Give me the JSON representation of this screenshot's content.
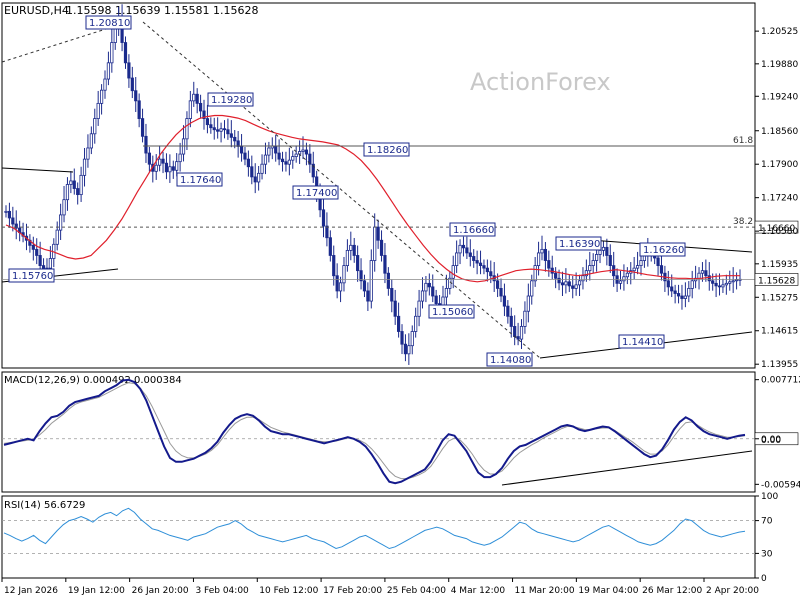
{
  "chart_data": [
    {
      "type": "candlestick",
      "title": "EURUSD,H4",
      "ohlc": "1.15598 1.15639 1.15581 1.15628",
      "watermark": "ActionForex",
      "ylim": [
        1.1388,
        1.2108
      ],
      "y_ticks": [
        "1.20525",
        "1.19880",
        "1.19240",
        "1.18560",
        "1.17900",
        "1.17240",
        "1.16580",
        "1.15935",
        "1.15275",
        "1.14615",
        "1.13955"
      ],
      "x_ticks": [
        "12 Jan 2026",
        "19 Jan 12:00",
        "26 Jan 20:00",
        "3 Feb 04:00",
        "10 Feb 12:00",
        "17 Feb 20:00",
        "25 Feb 04:00",
        "4 Mar 12:00",
        "11 Mar 20:00",
        "19 Mar 04:00",
        "26 Mar 12:00",
        "2 Apr 20:00"
      ],
      "current_price": "1.15628",
      "fib_levels": [
        {
          "label": "61.8",
          "value": 1.1826
        },
        {
          "label": "38.2",
          "value": 1.1666,
          "price_label": "1.16660"
        }
      ],
      "swing_labels": [
        "1.20810",
        "1.19280",
        "1.18260",
        "1.17640",
        "1.17400",
        "1.16660",
        "1.16390",
        "1.16260",
        "1.15760",
        "1.15060",
        "1.14410",
        "1.14080"
      ],
      "close_series": [
        1.1697,
        1.1684,
        1.1672,
        1.1664,
        1.1655,
        1.1648,
        1.164,
        1.163,
        1.1622,
        1.161,
        1.159,
        1.1578,
        1.1585,
        1.1604,
        1.1632,
        1.166,
        1.169,
        1.172,
        1.175,
        1.1757,
        1.1742,
        1.173,
        1.1768,
        1.18,
        1.1822,
        1.185,
        1.188,
        1.191,
        1.1936,
        1.1958,
        1.199,
        1.203,
        1.2065,
        1.2081,
        1.203,
        1.199,
        1.196,
        1.1935,
        1.1915,
        1.188,
        1.1845,
        1.1812,
        1.179,
        1.1776,
        1.1788,
        1.18,
        1.1792,
        1.1775,
        1.1785,
        1.1778,
        1.1795,
        1.181,
        1.184,
        1.188,
        1.1915,
        1.1928,
        1.191,
        1.1895,
        1.188,
        1.1868,
        1.1862,
        1.1858,
        1.1855,
        1.186,
        1.1858,
        1.185,
        1.1843,
        1.1836,
        1.1825,
        1.1812,
        1.18,
        1.1785,
        1.1765,
        1.1755,
        1.1772,
        1.179,
        1.1808,
        1.1822,
        1.1826,
        1.1812,
        1.18,
        1.1795,
        1.179,
        1.1798,
        1.1805,
        1.181,
        1.1815,
        1.1818,
        1.181,
        1.179,
        1.1765,
        1.1735,
        1.17,
        1.1668,
        1.1645,
        1.161,
        1.157,
        1.154,
        1.1556,
        1.159,
        1.162,
        1.163,
        1.161,
        1.158,
        1.156,
        1.154,
        1.152,
        1.16,
        1.1666,
        1.164,
        1.161,
        1.1575,
        1.1545,
        1.152,
        1.149,
        1.146,
        1.1435,
        1.1416,
        1.1432,
        1.146,
        1.149,
        1.152,
        1.154,
        1.1555,
        1.1548,
        1.153,
        1.1515,
        1.151,
        1.1528,
        1.1545,
        1.1565,
        1.159,
        1.1615,
        1.163,
        1.1625,
        1.1615,
        1.1608,
        1.16,
        1.1595,
        1.159,
        1.1585,
        1.1578,
        1.157,
        1.156,
        1.1545,
        1.153,
        1.151,
        1.149,
        1.147,
        1.145,
        1.1445,
        1.147,
        1.15,
        1.153,
        1.156,
        1.159,
        1.1615,
        1.1622,
        1.16,
        1.1585,
        1.1575,
        1.1565,
        1.1556,
        1.1552,
        1.1558,
        1.155,
        1.1545,
        1.1552,
        1.156,
        1.157,
        1.158,
        1.159,
        1.16,
        1.1612,
        1.162,
        1.1626,
        1.161,
        1.159,
        1.157,
        1.1555,
        1.156,
        1.1568,
        1.1575,
        1.158,
        1.1585,
        1.159,
        1.16,
        1.161,
        1.162,
        1.1615,
        1.1605,
        1.159,
        1.1575,
        1.156,
        1.1548,
        1.154,
        1.1535,
        1.153,
        1.1525,
        1.153,
        1.1545,
        1.156,
        1.1565,
        1.1575,
        1.158,
        1.157,
        1.156,
        1.1555,
        1.155,
        1.1548,
        1.1552,
        1.1555,
        1.1558,
        1.156,
        1.1562,
        1.1563
      ],
      "ma_series": [
        1.167,
        1.1664,
        1.1652,
        1.164,
        1.1628,
        1.1622,
        1.1618,
        1.1612,
        1.1606,
        1.1603,
        1.1605,
        1.161,
        1.1625,
        1.164,
        1.166,
        1.1682,
        1.1708,
        1.1735,
        1.176,
        1.1785,
        1.181,
        1.183,
        1.1848,
        1.1862,
        1.1872,
        1.188,
        1.1884,
        1.1886,
        1.1886,
        1.1884,
        1.1881,
        1.1876,
        1.1869,
        1.1862,
        1.1856,
        1.1851,
        1.1847,
        1.1843,
        1.184,
        1.1838,
        1.1836,
        1.1834,
        1.1831,
        1.1828,
        1.182,
        1.181,
        1.1797,
        1.178,
        1.176,
        1.1738,
        1.1715,
        1.1692,
        1.167,
        1.165,
        1.163,
        1.1612,
        1.1596,
        1.1583,
        1.1572,
        1.1564,
        1.156,
        1.1558,
        1.156,
        1.1565,
        1.157,
        1.1575,
        1.158,
        1.1582,
        1.1583,
        1.1582,
        1.158,
        1.1578,
        1.1575,
        1.1572,
        1.157,
        1.1572,
        1.1575,
        1.1578,
        1.158,
        1.1582,
        1.158,
        1.1578,
        1.1575,
        1.1572,
        1.157,
        1.1568,
        1.1566,
        1.1565,
        1.1565,
        1.1564,
        1.1565,
        1.1567,
        1.1569,
        1.157,
        1.157,
        1.157
      ],
      "trendlines": "support and resistance lines, dashed channel lines",
      "panes": [
        {
          "name": "MACD(12,26,9) 0.000492 0.000384",
          "y_ticks": [
            "0.007712",
            "0.00",
            "-0.005944"
          ],
          "current_value": "0.00",
          "macd_series": [
            -0.0008,
            -0.0006,
            -0.0004,
            -0.0002,
            0.0,
            -0.0002,
            0.001,
            0.002,
            0.0028,
            0.003,
            0.0035,
            0.0043,
            0.0048,
            0.005,
            0.0052,
            0.0054,
            0.0056,
            0.0062,
            0.0066,
            0.007,
            0.0076,
            0.0077,
            0.0074,
            0.0065,
            0.005,
            0.003,
            0.001,
            -0.001,
            -0.0025,
            -0.003,
            -0.003,
            -0.0028,
            -0.0026,
            -0.0022,
            -0.0018,
            -0.0012,
            -0.0004,
            0.0008,
            0.0018,
            0.0026,
            0.003,
            0.0032,
            0.003,
            0.0024,
            0.0016,
            0.001,
            0.0008,
            0.0006,
            0.0006,
            0.0004,
            0.0002,
            0.0,
            -0.0002,
            -0.0004,
            -0.0006,
            -0.0004,
            -0.0002,
            0.0,
            0.0002,
            0.0,
            -0.0004,
            -0.001,
            -0.002,
            -0.0032,
            -0.0045,
            -0.0056,
            -0.0058,
            -0.0056,
            -0.0052,
            -0.0048,
            -0.0044,
            -0.004,
            -0.003,
            -0.0016,
            -0.0002,
            0.0006,
            0.0004,
            -0.0006,
            -0.0016,
            -0.003,
            -0.0044,
            -0.005,
            -0.005,
            -0.0046,
            -0.0038,
            -0.0026,
            -0.0016,
            -0.001,
            -0.0008,
            -0.0004,
            0.0,
            0.0004,
            0.0008,
            0.0012,
            0.0016,
            0.0018,
            0.0016,
            0.0012,
            0.001,
            0.0012,
            0.0014,
            0.0016,
            0.0015,
            0.001,
            0.0004,
            -0.0002,
            -0.0008,
            -0.0014,
            -0.002,
            -0.0024,
            -0.0022,
            -0.0014,
            -0.0002,
            0.0012,
            0.0022,
            0.0028,
            0.0024,
            0.0016,
            0.001,
            0.0006,
            0.0004,
            0.0002,
            0.0,
            0.0002,
            0.0004,
            0.0005
          ],
          "signal_series": [
            -0.0006,
            -0.0005,
            -0.0004,
            -0.0003,
            -0.0002,
            -0.0001,
            0.0005,
            0.0012,
            0.002,
            0.0026,
            0.0032,
            0.0039,
            0.0045,
            0.0048,
            0.005,
            0.0052,
            0.0054,
            0.0058,
            0.0062,
            0.0066,
            0.007,
            0.0073,
            0.0072,
            0.0066,
            0.0056,
            0.0042,
            0.0026,
            0.001,
            -0.0006,
            -0.0016,
            -0.0022,
            -0.0025,
            -0.0025,
            -0.0023,
            -0.002,
            -0.0015,
            -0.0008,
            0.0002,
            0.0012,
            0.002,
            0.0025,
            0.0028,
            0.0028,
            0.0025,
            0.002,
            0.0015,
            0.0012,
            0.0009,
            0.0007,
            0.0005,
            0.0003,
            0.0001,
            -0.0001,
            -0.0003,
            -0.0004,
            -0.0004,
            -0.0003,
            -0.0001,
            0.0001,
            0.0,
            -0.0002,
            -0.0006,
            -0.0013,
            -0.0022,
            -0.0032,
            -0.0042,
            -0.0049,
            -0.0052,
            -0.0052,
            -0.005,
            -0.0047,
            -0.0043,
            -0.0036,
            -0.0025,
            -0.0013,
            -0.0003,
            0.0001,
            -0.0002,
            -0.001,
            -0.002,
            -0.0032,
            -0.0041,
            -0.0046,
            -0.0046,
            -0.0042,
            -0.0034,
            -0.0025,
            -0.0018,
            -0.0013,
            -0.0008,
            -0.0004,
            0.0001,
            0.0005,
            0.0009,
            0.0013,
            0.0016,
            0.0016,
            0.0014,
            0.0012,
            0.0012,
            0.0013,
            0.0014,
            0.0014,
            0.0011,
            0.0006,
            0.0001,
            -0.0004,
            -0.001,
            -0.0016,
            -0.002,
            -0.002,
            -0.0016,
            -0.0008,
            0.0003,
            0.0013,
            0.0021,
            0.0022,
            0.0018,
            0.0013,
            0.0009,
            0.0006,
            0.0004,
            0.0002,
            0.0002,
            0.0003,
            0.0004
          ],
          "trendline": "support line"
        },
        {
          "name": "RSI(14) 56.6729",
          "y_ticks": [
            "100",
            "70",
            "30",
            "0"
          ],
          "levels": [
            70,
            30
          ],
          "rsi_series": [
            55,
            52,
            48,
            45,
            48,
            52,
            46,
            42,
            50,
            58,
            65,
            70,
            72,
            75,
            72,
            68,
            74,
            78,
            80,
            76,
            82,
            85,
            80,
            72,
            66,
            60,
            58,
            55,
            52,
            50,
            48,
            46,
            50,
            52,
            54,
            58,
            62,
            64,
            66,
            70,
            66,
            60,
            56,
            52,
            50,
            48,
            46,
            44,
            46,
            48,
            50,
            52,
            48,
            46,
            44,
            40,
            36,
            38,
            42,
            46,
            50,
            52,
            48,
            44,
            40,
            36,
            38,
            42,
            46,
            50,
            54,
            58,
            60,
            62,
            60,
            56,
            52,
            50,
            48,
            44,
            42,
            40,
            42,
            46,
            50,
            56,
            62,
            68,
            66,
            60,
            56,
            54,
            52,
            50,
            48,
            46,
            44,
            46,
            50,
            54,
            58,
            62,
            64,
            60,
            56,
            52,
            48,
            44,
            42,
            40,
            42,
            46,
            52,
            58,
            66,
            72,
            70,
            64,
            58,
            54,
            52,
            50,
            52,
            54,
            56,
            57
          ]
        }
      ]
    }
  ]
}
